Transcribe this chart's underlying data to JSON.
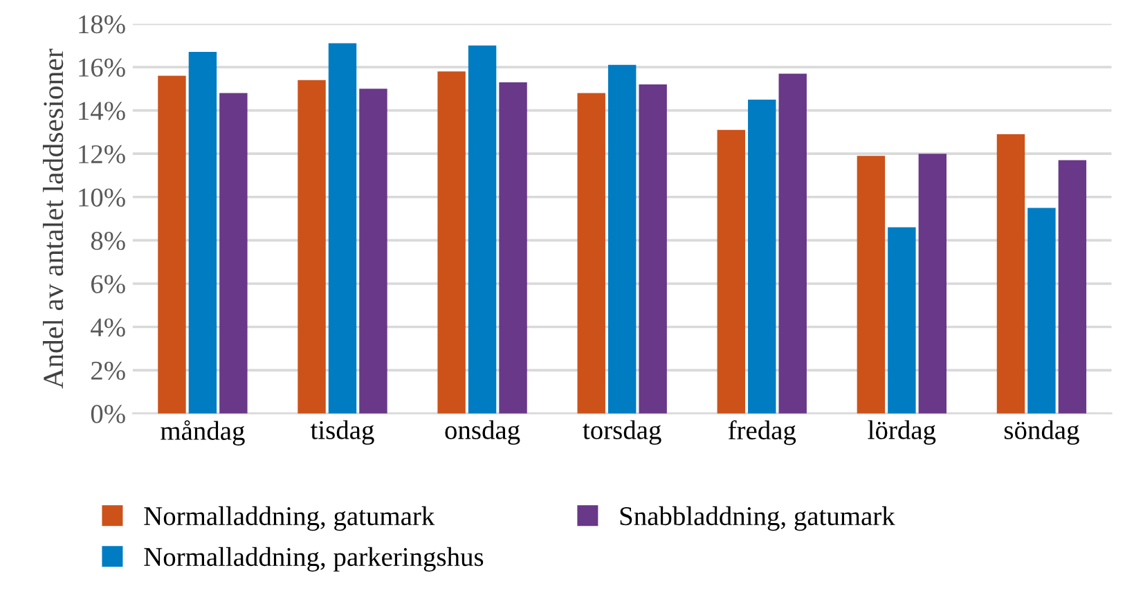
{
  "chart_data": {
    "type": "bar",
    "ylabel": "Andel av antalet laddsesioner",
    "categories": [
      "måndag",
      "tisdag",
      "onsdag",
      "torsdag",
      "fredag",
      "lördag",
      "söndag"
    ],
    "series": [
      {
        "name": "Normalladdning, gatumark",
        "color": "#cc521a",
        "values": [
          15.6,
          15.4,
          15.8,
          14.8,
          13.1,
          11.9,
          12.9
        ]
      },
      {
        "name": "Normalladdning, parkeringshus",
        "color": "#007cc3",
        "values": [
          16.7,
          17.1,
          17.0,
          16.1,
          14.5,
          8.6,
          9.5
        ]
      },
      {
        "name": "Snabbladdning, gatumark",
        "color": "#693888",
        "values": [
          14.8,
          15.0,
          15.3,
          15.2,
          15.7,
          12.0,
          11.7
        ]
      }
    ],
    "ylim": [
      0,
      18
    ],
    "yticks": [
      {
        "value": 0,
        "label": "0%"
      },
      {
        "value": 2,
        "label": "2%"
      },
      {
        "value": 4,
        "label": "4%"
      },
      {
        "value": 6,
        "label": "6%"
      },
      {
        "value": 8,
        "label": "8%"
      },
      {
        "value": 10,
        "label": "10%"
      },
      {
        "value": 12,
        "label": "12%"
      },
      {
        "value": 14,
        "label": "14%"
      },
      {
        "value": 16,
        "label": "16%"
      },
      {
        "value": 18,
        "label": "18%"
      }
    ],
    "grid": "y",
    "legend": "bottom"
  }
}
